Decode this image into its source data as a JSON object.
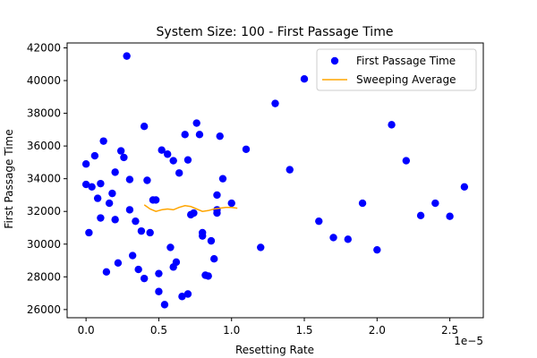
{
  "chart_data": {
    "type": "scatter",
    "title": "System Size: 100 - First Passage Time",
    "xlabel": "Resetting Rate",
    "ylabel": "First Passage Time",
    "x_offset_label": "1e−5",
    "xlim": [
      -0.13,
      2.73
    ],
    "ylim": [
      25500,
      42300
    ],
    "x_ticks": [
      0.0,
      0.5,
      1.0,
      1.5,
      2.0,
      2.5
    ],
    "x_tick_labels": [
      "0.0",
      "0.5",
      "1.0",
      "1.5",
      "2.0",
      "2.5"
    ],
    "y_ticks": [
      26000,
      28000,
      30000,
      32000,
      34000,
      36000,
      38000,
      40000,
      42000
    ],
    "y_tick_labels": [
      "26000",
      "28000",
      "30000",
      "32000",
      "34000",
      "36000",
      "38000",
      "40000",
      "42000"
    ],
    "grid": false,
    "legend_position": "top-right",
    "series": [
      {
        "name": "First Passage Time",
        "kind": "scatter",
        "color": "#0000ff",
        "points": [
          [
            0.0,
            34900
          ],
          [
            0.0,
            33650
          ],
          [
            0.02,
            30700
          ],
          [
            0.04,
            33500
          ],
          [
            0.06,
            35400
          ],
          [
            0.08,
            32800
          ],
          [
            0.1,
            33700
          ],
          [
            0.1,
            31600
          ],
          [
            0.12,
            36300
          ],
          [
            0.14,
            28300
          ],
          [
            0.16,
            32500
          ],
          [
            0.18,
            33100
          ],
          [
            0.2,
            34400
          ],
          [
            0.2,
            31500
          ],
          [
            0.22,
            28850
          ],
          [
            0.24,
            35700
          ],
          [
            0.26,
            35300
          ],
          [
            0.28,
            41500
          ],
          [
            0.3,
            33950
          ],
          [
            0.3,
            32100
          ],
          [
            0.32,
            29300
          ],
          [
            0.34,
            31400
          ],
          [
            0.36,
            28450
          ],
          [
            0.38,
            30800
          ],
          [
            0.4,
            37200
          ],
          [
            0.4,
            27900
          ],
          [
            0.42,
            33900
          ],
          [
            0.44,
            30700
          ],
          [
            0.46,
            32700
          ],
          [
            0.48,
            32700
          ],
          [
            0.5,
            28200
          ],
          [
            0.5,
            27100
          ],
          [
            0.52,
            35750
          ],
          [
            0.54,
            26300
          ],
          [
            0.56,
            35500
          ],
          [
            0.58,
            29800
          ],
          [
            0.6,
            28600
          ],
          [
            0.6,
            35100
          ],
          [
            0.62,
            28900
          ],
          [
            0.64,
            34350
          ],
          [
            0.66,
            26800
          ],
          [
            0.68,
            36700
          ],
          [
            0.7,
            26950
          ],
          [
            0.7,
            35150
          ],
          [
            0.72,
            31800
          ],
          [
            0.74,
            31900
          ],
          [
            0.76,
            37400
          ],
          [
            0.78,
            36700
          ],
          [
            0.8,
            30700
          ],
          [
            0.8,
            30500
          ],
          [
            0.82,
            28100
          ],
          [
            0.84,
            28050
          ],
          [
            0.86,
            30200
          ],
          [
            0.88,
            29100
          ],
          [
            0.9,
            33000
          ],
          [
            0.9,
            32100
          ],
          [
            0.9,
            31900
          ],
          [
            0.92,
            36600
          ],
          [
            0.94,
            34000
          ],
          [
            1.0,
            32500
          ],
          [
            1.1,
            35800
          ],
          [
            1.2,
            29800
          ],
          [
            1.3,
            38600
          ],
          [
            1.4,
            34550
          ],
          [
            1.5,
            40100
          ],
          [
            1.6,
            31400
          ],
          [
            1.7,
            30400
          ],
          [
            1.8,
            30300
          ],
          [
            1.9,
            32500
          ],
          [
            2.0,
            29650
          ],
          [
            2.1,
            37300
          ],
          [
            2.2,
            35100
          ],
          [
            2.3,
            31750
          ],
          [
            2.4,
            32500
          ],
          [
            2.5,
            31700
          ],
          [
            2.6,
            33500
          ]
        ]
      },
      {
        "name": "Sweeping Average",
        "kind": "line",
        "color": "#ffa500",
        "points": [
          [
            0.4,
            32400
          ],
          [
            0.44,
            32150
          ],
          [
            0.48,
            32000
          ],
          [
            0.5,
            32050
          ],
          [
            0.52,
            32100
          ],
          [
            0.56,
            32150
          ],
          [
            0.6,
            32100
          ],
          [
            0.64,
            32250
          ],
          [
            0.68,
            32350
          ],
          [
            0.72,
            32300
          ],
          [
            0.76,
            32150
          ],
          [
            0.8,
            32000
          ],
          [
            0.84,
            32050
          ],
          [
            0.88,
            32150
          ],
          [
            0.92,
            32200
          ],
          [
            0.96,
            32250
          ],
          [
            1.0,
            32250
          ],
          [
            1.04,
            32200
          ]
        ]
      }
    ]
  }
}
